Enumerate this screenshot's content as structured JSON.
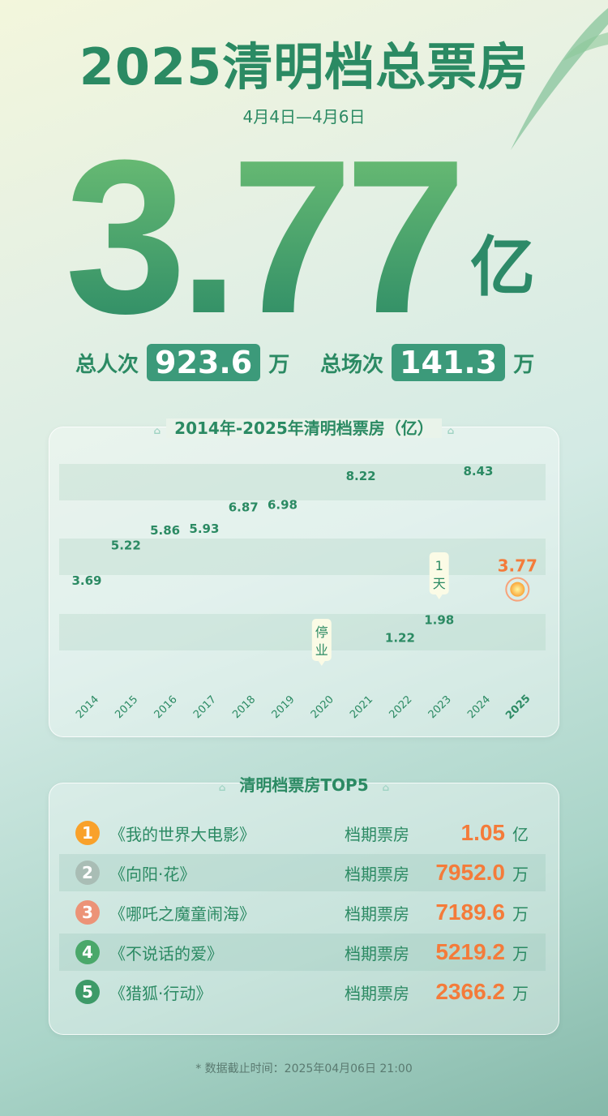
{
  "header": {
    "title": "2025清明档总票房",
    "date_range": "4月4日—4月6日",
    "total_box_office": "3.77",
    "total_unit": "亿",
    "admissions_label": "总人次",
    "admissions_value": "923.6",
    "admissions_unit": "万",
    "screenings_label": "总场次",
    "screenings_value": "141.3",
    "screenings_unit": "万"
  },
  "colors": {
    "primary_green": "#2b8a63",
    "accent_orange": "#f47b3a"
  },
  "chart_data": {
    "type": "bar",
    "title": "2014年-2025年清明档票房（亿）",
    "categories": [
      "2014",
      "2015",
      "2016",
      "2017",
      "2018",
      "2019",
      "2020",
      "2021",
      "2022",
      "2023",
      "2024",
      "2025"
    ],
    "values": [
      3.69,
      5.22,
      5.86,
      5.93,
      6.87,
      6.98,
      null,
      8.22,
      1.22,
      1.98,
      8.43,
      3.77
    ],
    "value_labels": [
      "3.69",
      "5.22",
      "5.86",
      "5.93",
      "6.87",
      "6.98",
      "",
      "8.22",
      "1.22",
      "1.98",
      "8.43",
      "3.77"
    ],
    "annotations": [
      {
        "category": "2020",
        "text": "停业"
      },
      {
        "category": "2023",
        "text": "1天"
      }
    ],
    "highlight": "2025",
    "ylim": [
      0,
      9
    ],
    "grid": "bands"
  },
  "top5": {
    "title": "清明档票房TOP5",
    "items": [
      {
        "rank": "1",
        "title": "《我的世界大电影》",
        "label": "档期票房",
        "value": "1.05",
        "unit": "亿",
        "color": "#f9a12a"
      },
      {
        "rank": "2",
        "title": "《向阳·花》",
        "label": "档期票房",
        "value": "7952.0",
        "unit": "万",
        "color": "#a9bdb5"
      },
      {
        "rank": "3",
        "title": "《哪吒之魔童闹海》",
        "label": "档期票房",
        "value": "7189.6",
        "unit": "万",
        "color": "#ec9377"
      },
      {
        "rank": "4",
        "title": "《不说话的爱》",
        "label": "档期票房",
        "value": "5219.2",
        "unit": "万",
        "color": "#4aa86a"
      },
      {
        "rank": "5",
        "title": "《猎狐·行动》",
        "label": "档期票房",
        "value": "2366.2",
        "unit": "万",
        "color": "#3d9a68"
      }
    ]
  },
  "footer": "* 数据截止时间：2025年04月06日 21:00"
}
